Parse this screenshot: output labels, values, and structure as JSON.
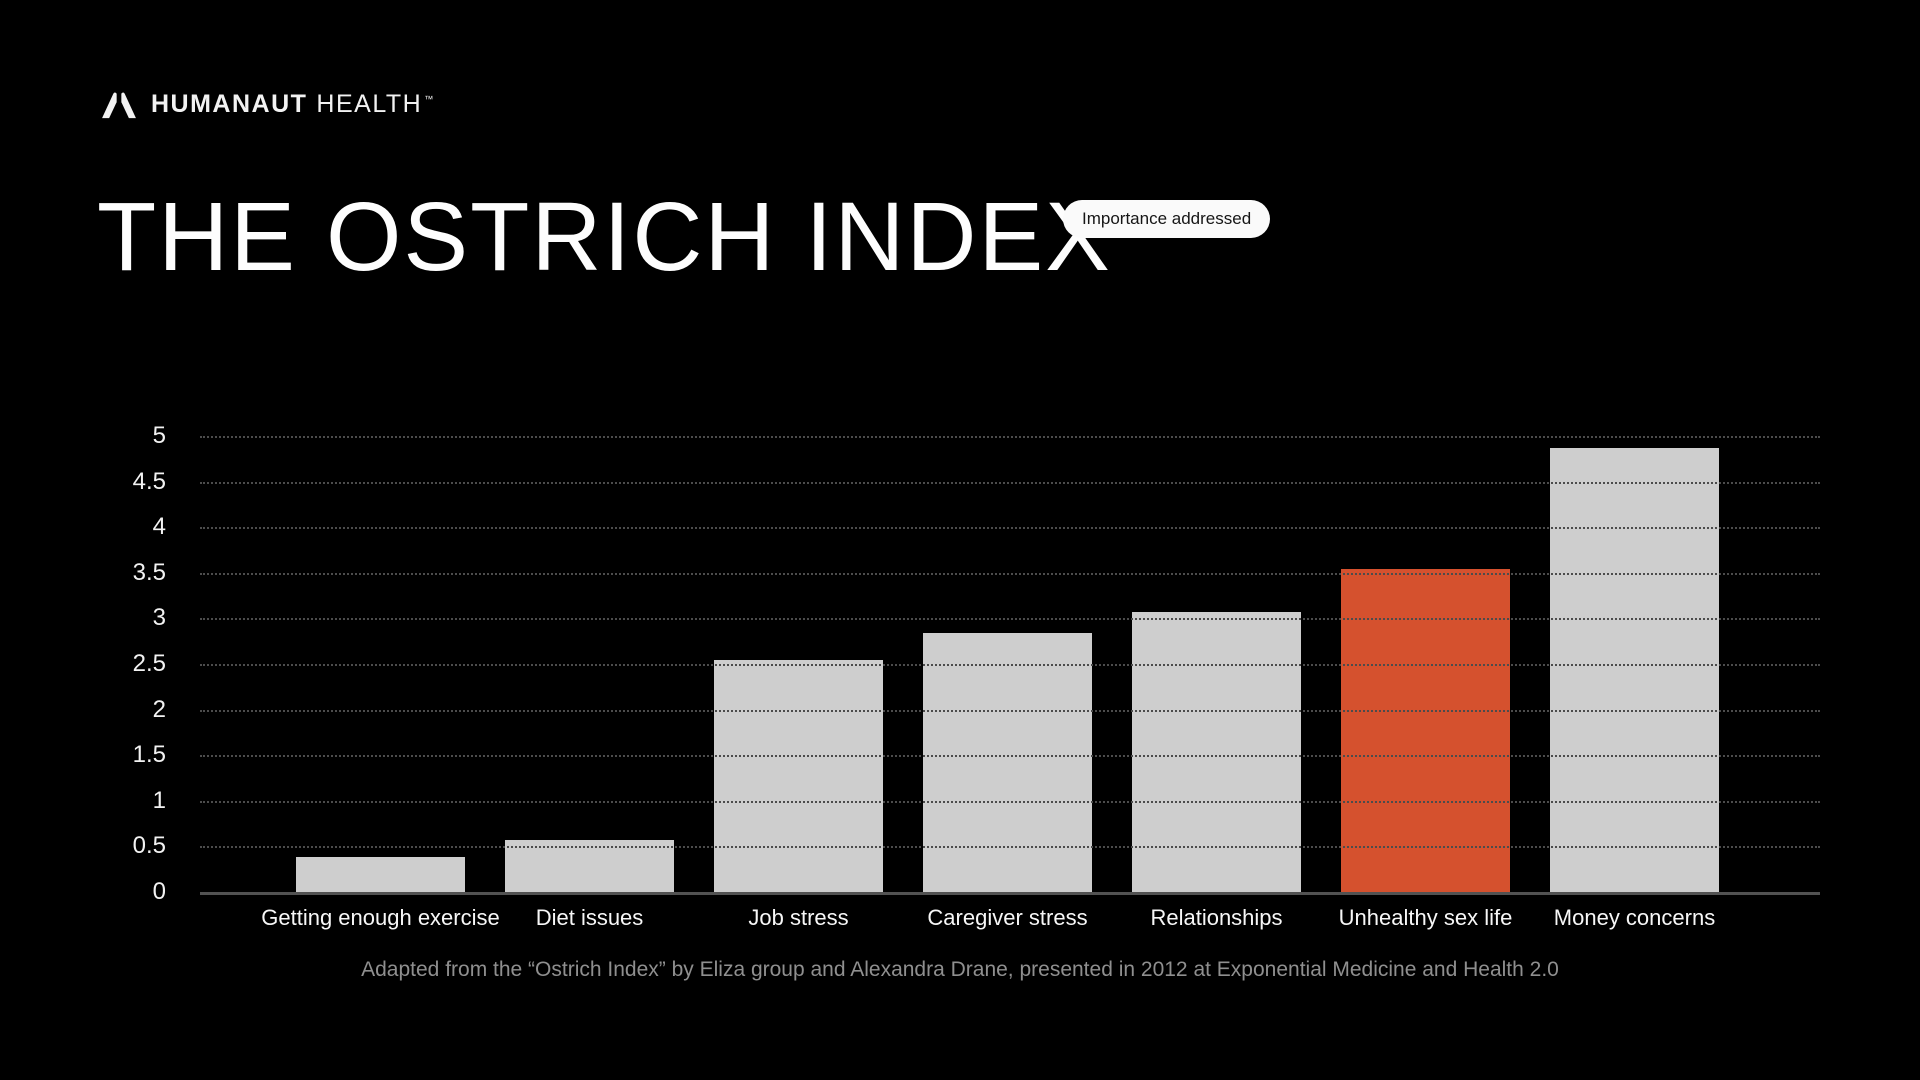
{
  "brand": {
    "name_primary": "HUMANAUT",
    "name_secondary": "HEALTH",
    "trademark": "™"
  },
  "page_title": "THE OSTRICH INDEX",
  "badge_label": "Importance addressed",
  "caption": "Adapted from the “Ostrich Index” by Eliza group and Alexandra Drane, presented in 2012 at Exponential Medicine and Health 2.0",
  "colors": {
    "background": "#000000",
    "bar_default": "#CECECE",
    "bar_highlight": "#D5512E",
    "gridline": "#4C4C4C",
    "axis_line": "#525252",
    "title_text": "#FDFDFD",
    "caption_text": "#8F8F8F",
    "badge_bg": "#FAFAFA",
    "badge_text": "#161616"
  },
  "chart_data": {
    "type": "bar",
    "title": "THE OSTRICH INDEX",
    "xlabel": "",
    "ylabel": "",
    "categories": [
      "Getting enough exercise",
      "Diet issues",
      "Job stress",
      "Caregiver stress",
      "Relationships",
      "Unhealthy sex life",
      "Money concerns"
    ],
    "values": [
      0.4,
      0.58,
      2.55,
      2.85,
      3.08,
      3.55,
      4.88
    ],
    "highlight_index": 5,
    "highlighted_category": "Unhealthy sex life",
    "ylim": [
      0,
      5
    ],
    "yticks": [
      0,
      0.5,
      1,
      1.5,
      2,
      2.5,
      3,
      3.5,
      4,
      4.5,
      5
    ],
    "grid": "dotted horizontal",
    "legend": "none"
  }
}
